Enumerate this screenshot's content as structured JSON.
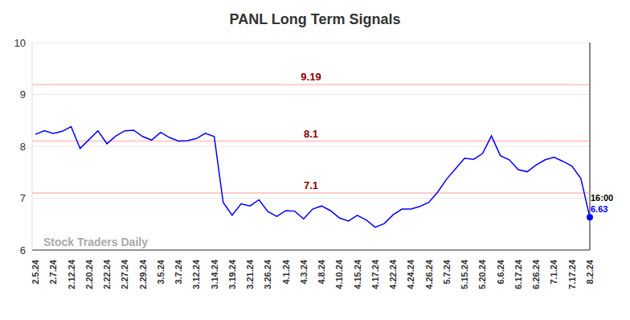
{
  "chart_data": {
    "type": "line",
    "title": "PANL Long Term Signals",
    "watermark": "Stock Traders Daily",
    "last_label": "16:00",
    "categories": [
      "2.5.24",
      null,
      "2.7.24",
      null,
      "2.12.24",
      null,
      "2.20.24",
      null,
      "2.22.24",
      null,
      "2.27.24",
      null,
      "2.29.24",
      null,
      "3.5.24",
      null,
      "3.7.24",
      null,
      "3.12.24",
      null,
      "3.14.24",
      null,
      "3.19.24",
      null,
      "3.21.24",
      null,
      "3.26.24",
      null,
      "4.1.24",
      null,
      "4.3.24",
      null,
      "4.8.24",
      null,
      "4.10.24",
      null,
      "4.15.24",
      null,
      "4.17.24",
      null,
      "4.22.24",
      null,
      "4.24.24",
      null,
      "4.26.24",
      null,
      "5.7.24",
      null,
      "5.15.24",
      null,
      "5.20.24",
      null,
      "6.6.24",
      null,
      "6.17.24",
      null,
      "6.26.24",
      null,
      "7.1.24",
      null,
      "7.17.24",
      null,
      "8.2.24"
    ],
    "values": [
      8.23,
      8.3,
      8.25,
      8.29,
      8.38,
      7.96,
      8.13,
      8.3,
      8.05,
      8.2,
      8.3,
      8.31,
      8.19,
      8.12,
      8.27,
      8.17,
      8.1,
      8.11,
      8.15,
      8.25,
      8.19,
      6.92,
      6.67,
      6.89,
      6.85,
      6.97,
      6.74,
      6.65,
      6.76,
      6.75,
      6.6,
      6.79,
      6.85,
      6.76,
      6.62,
      6.56,
      6.67,
      6.58,
      6.44,
      6.51,
      6.68,
      6.79,
      6.79,
      6.84,
      6.92,
      7.12,
      7.37,
      7.57,
      7.77,
      7.75,
      7.86,
      8.2,
      7.82,
      7.74,
      7.55,
      7.51,
      7.64,
      7.74,
      7.79,
      7.71,
      7.62,
      7.38,
      6.63
    ],
    "color": "#0000ff",
    "signals": [
      9.19,
      8.1,
      7.1
    ],
    "ylim": [
      6,
      10
    ],
    "yticks": [
      6,
      7,
      8,
      9,
      10
    ],
    "grid": true
  }
}
